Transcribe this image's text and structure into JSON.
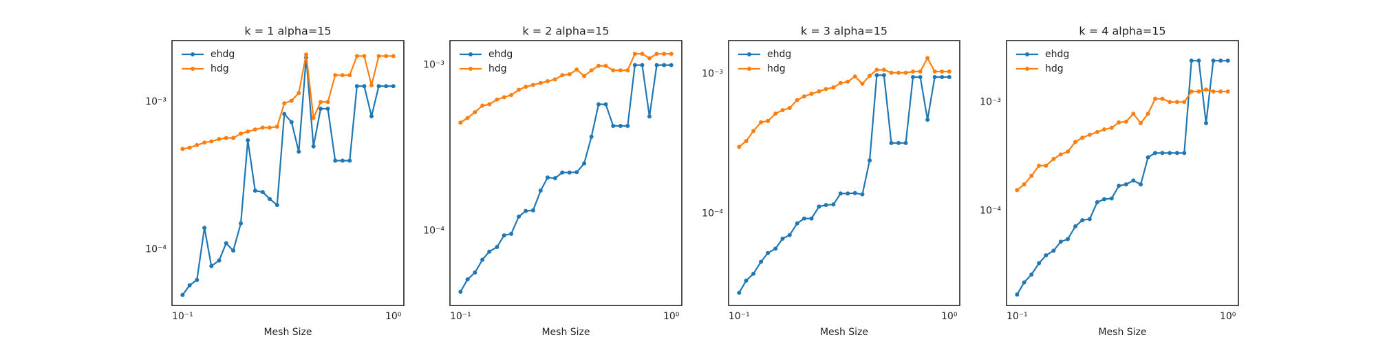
{
  "chart_data": [
    {
      "type": "line",
      "title": "k = 1 alpha=15",
      "x_label": "Mesh Size",
      "log_x": true,
      "log_y": true,
      "grid": false,
      "legend": "upper left",
      "x": [
        0.1,
        0.108,
        0.117,
        0.127,
        0.137,
        0.149,
        0.161,
        0.174,
        0.189,
        0.204,
        0.221,
        0.24,
        0.259,
        0.281,
        0.304,
        0.329,
        0.356,
        0.386,
        0.418,
        0.452,
        0.489,
        0.53,
        0.574,
        0.621,
        0.672,
        0.728,
        0.788,
        0.853,
        0.924,
        1.0
      ],
      "xlim": [
        0.0891,
        1.122
      ],
      "xticks": [
        {
          "value": 0.1,
          "label": "10⁻¹"
        },
        {
          "value": 1,
          "label": "10⁰"
        }
      ],
      "ylim": [
        4.16e-05,
        0.00261
      ],
      "yticks": [
        {
          "value": 0.0001,
          "label": "10⁻⁴"
        },
        {
          "value": 0.001,
          "label": "10⁻³"
        }
      ],
      "series": [
        {
          "name": "ehdg",
          "color": "#1f77b4",
          "values": [
            4.9e-05,
            5.7e-05,
            6.2e-05,
            0.00014,
            7.7e-05,
            8.4e-05,
            0.00011,
            9.8e-05,
            0.00015,
            0.00055,
            0.00025,
            0.000245,
            0.00022,
            0.0002,
            0.00083,
            0.00073,
            0.00046,
            0.002,
            0.0005,
            0.0009,
            0.0009,
            0.0004,
            0.0004,
            0.0004,
            0.00128,
            0.00128,
            0.0008,
            0.00128,
            0.00128,
            0.00128
          ]
        },
        {
          "name": "hdg",
          "color": "#ff7f0e",
          "values": [
            0.00048,
            0.00049,
            0.00051,
            0.00053,
            0.00054,
            0.00056,
            0.00057,
            0.00057,
            0.00061,
            0.00063,
            0.00065,
            0.00067,
            0.00067,
            0.00068,
            0.00098,
            0.00102,
            0.00115,
            0.0021,
            0.00078,
            0.001,
            0.001,
            0.00152,
            0.00152,
            0.00152,
            0.00205,
            0.00205,
            0.0013,
            0.00205,
            0.00205,
            0.00205
          ]
        }
      ]
    },
    {
      "type": "line",
      "title": "k = 2 alpha=15",
      "x_label": "Mesh Size",
      "log_x": true,
      "log_y": true,
      "grid": false,
      "legend": "upper left",
      "x": [
        0.1,
        0.108,
        0.117,
        0.127,
        0.137,
        0.149,
        0.161,
        0.174,
        0.189,
        0.204,
        0.221,
        0.24,
        0.259,
        0.281,
        0.304,
        0.329,
        0.356,
        0.386,
        0.418,
        0.452,
        0.489,
        0.53,
        0.574,
        0.621,
        0.672,
        0.728,
        0.788,
        0.853,
        0.924,
        1.0
      ],
      "xlim": [
        0.0891,
        1.122
      ],
      "xticks": [
        {
          "value": 0.1,
          "label": "10⁻¹"
        },
        {
          "value": 1,
          "label": "10⁰"
        }
      ],
      "ylim": [
        3.55e-05,
        0.001406
      ],
      "yticks": [
        {
          "value": 0.0001,
          "label": "10⁻⁴"
        },
        {
          "value": 0.001,
          "label": "10⁻³"
        }
      ],
      "series": [
        {
          "name": "ehdg",
          "color": "#1f77b4",
          "values": [
            4.3e-05,
            5.1e-05,
            5.6e-05,
            6.7e-05,
            7.5e-05,
            8e-05,
            9.4e-05,
            9.6e-05,
            0.000122,
            0.000132,
            0.000133,
            0.000175,
            0.00021,
            0.000208,
            0.000225,
            0.000225,
            0.000226,
            0.000255,
            0.00037,
            0.00058,
            0.00058,
            0.00043,
            0.00043,
            0.00043,
            0.001,
            0.001,
            0.00049,
            0.001,
            0.001,
            0.001
          ]
        },
        {
          "name": "hdg",
          "color": "#ff7f0e",
          "values": [
            0.00045,
            0.00048,
            0.00052,
            0.00057,
            0.00058,
            0.00062,
            0.00064,
            0.00066,
            0.00071,
            0.00074,
            0.00076,
            0.00078,
            0.0008,
            0.00082,
            0.00087,
            0.00088,
            0.00094,
            0.00086,
            0.00093,
            0.00099,
            0.00099,
            0.00093,
            0.00093,
            0.00093,
            0.00117,
            0.00117,
            0.0011,
            0.00117,
            0.00117,
            0.00117
          ]
        }
      ]
    },
    {
      "type": "line",
      "title": "k = 3 alpha=15",
      "x_label": "Mesh Size",
      "log_x": true,
      "log_y": true,
      "grid": false,
      "legend": "upper left",
      "x": [
        0.1,
        0.108,
        0.117,
        0.127,
        0.137,
        0.149,
        0.161,
        0.174,
        0.189,
        0.204,
        0.221,
        0.24,
        0.259,
        0.281,
        0.304,
        0.329,
        0.356,
        0.386,
        0.418,
        0.452,
        0.489,
        0.53,
        0.574,
        0.621,
        0.672,
        0.728,
        0.788,
        0.853,
        0.924,
        1.0
      ],
      "xlim": [
        0.0891,
        1.122
      ],
      "xticks": [
        {
          "value": 0.1,
          "label": "10⁻¹"
        },
        {
          "value": 1,
          "label": "10⁰"
        }
      ],
      "ylim": [
        2.19e-05,
        0.001734
      ],
      "yticks": [
        {
          "value": 0.0001,
          "label": "10⁻⁴"
        },
        {
          "value": 0.001,
          "label": "10⁻³"
        }
      ],
      "series": [
        {
          "name": "ehdg",
          "color": "#1f77b4",
          "values": [
            2.7e-05,
            3.3e-05,
            3.7e-05,
            4.5e-05,
            5.2e-05,
            5.6e-05,
            6.6e-05,
            7e-05,
            8.5e-05,
            9.2e-05,
            9.2e-05,
            0.000112,
            0.000115,
            0.000116,
            0.000139,
            0.000139,
            0.00014,
            0.000137,
            0.00024,
            0.00098,
            0.00098,
            0.00032,
            0.00032,
            0.00032,
            0.00095,
            0.00095,
            0.00047,
            0.00095,
            0.00095,
            0.00095
          ]
        },
        {
          "name": "hdg",
          "color": "#ff7f0e",
          "values": [
            0.0003,
            0.00033,
            0.00039,
            0.00045,
            0.00046,
            0.00052,
            0.00055,
            0.00057,
            0.00065,
            0.00069,
            0.00072,
            0.00075,
            0.00078,
            0.0008,
            0.00086,
            0.00088,
            0.00096,
            0.00085,
            0.00097,
            0.00107,
            0.00107,
            0.00102,
            0.00102,
            0.00102,
            0.00104,
            0.00104,
            0.0013,
            0.00104,
            0.00104,
            0.00104
          ]
        }
      ]
    },
    {
      "type": "line",
      "title": "k = 4 alpha=15",
      "x_label": "Mesh Size",
      "log_x": true,
      "log_y": true,
      "grid": false,
      "legend": "upper left",
      "x": [
        0.1,
        0.108,
        0.117,
        0.127,
        0.137,
        0.149,
        0.161,
        0.174,
        0.189,
        0.204,
        0.221,
        0.24,
        0.259,
        0.281,
        0.304,
        0.329,
        0.356,
        0.386,
        0.418,
        0.452,
        0.489,
        0.53,
        0.574,
        0.621,
        0.672,
        0.728,
        0.788,
        0.853,
        0.924,
        1.0
      ],
      "xlim": [
        0.0891,
        1.122
      ],
      "xticks": [
        {
          "value": 0.1,
          "label": "10⁻¹"
        },
        {
          "value": 1,
          "label": "10⁰"
        }
      ],
      "ylim": [
        1.35e-05,
        0.00367
      ],
      "yticks": [
        {
          "value": 0.0001,
          "label": "10⁻⁴"
        },
        {
          "value": 0.001,
          "label": "10⁻³"
        }
      ],
      "series": [
        {
          "name": "ehdg",
          "color": "#1f77b4",
          "values": [
            1.7e-05,
            2.2e-05,
            2.6e-05,
            3.3e-05,
            3.9e-05,
            4.3e-05,
            5.2e-05,
            5.5e-05,
            7.2e-05,
            8.2e-05,
            8.4e-05,
            0.00012,
            0.000128,
            0.00013,
            0.00017,
            0.000175,
            0.00019,
            0.000175,
            0.00031,
            0.00034,
            0.00034,
            0.00034,
            0.00034,
            0.00034,
            0.0024,
            0.0024,
            0.00064,
            0.0024,
            0.0024,
            0.0024
          ]
        },
        {
          "name": "hdg",
          "color": "#ff7f0e",
          "values": [
            0.000155,
            0.000175,
            0.00021,
            0.00026,
            0.00026,
            0.0003,
            0.00033,
            0.00035,
            0.00043,
            0.00047,
            0.0005,
            0.00053,
            0.00056,
            0.00058,
            0.00065,
            0.00066,
            0.00078,
            0.00064,
            0.00078,
            0.00107,
            0.00107,
            0.001,
            0.001,
            0.001,
            0.00125,
            0.00125,
            0.0013,
            0.00125,
            0.00125,
            0.00125
          ]
        }
      ]
    }
  ]
}
